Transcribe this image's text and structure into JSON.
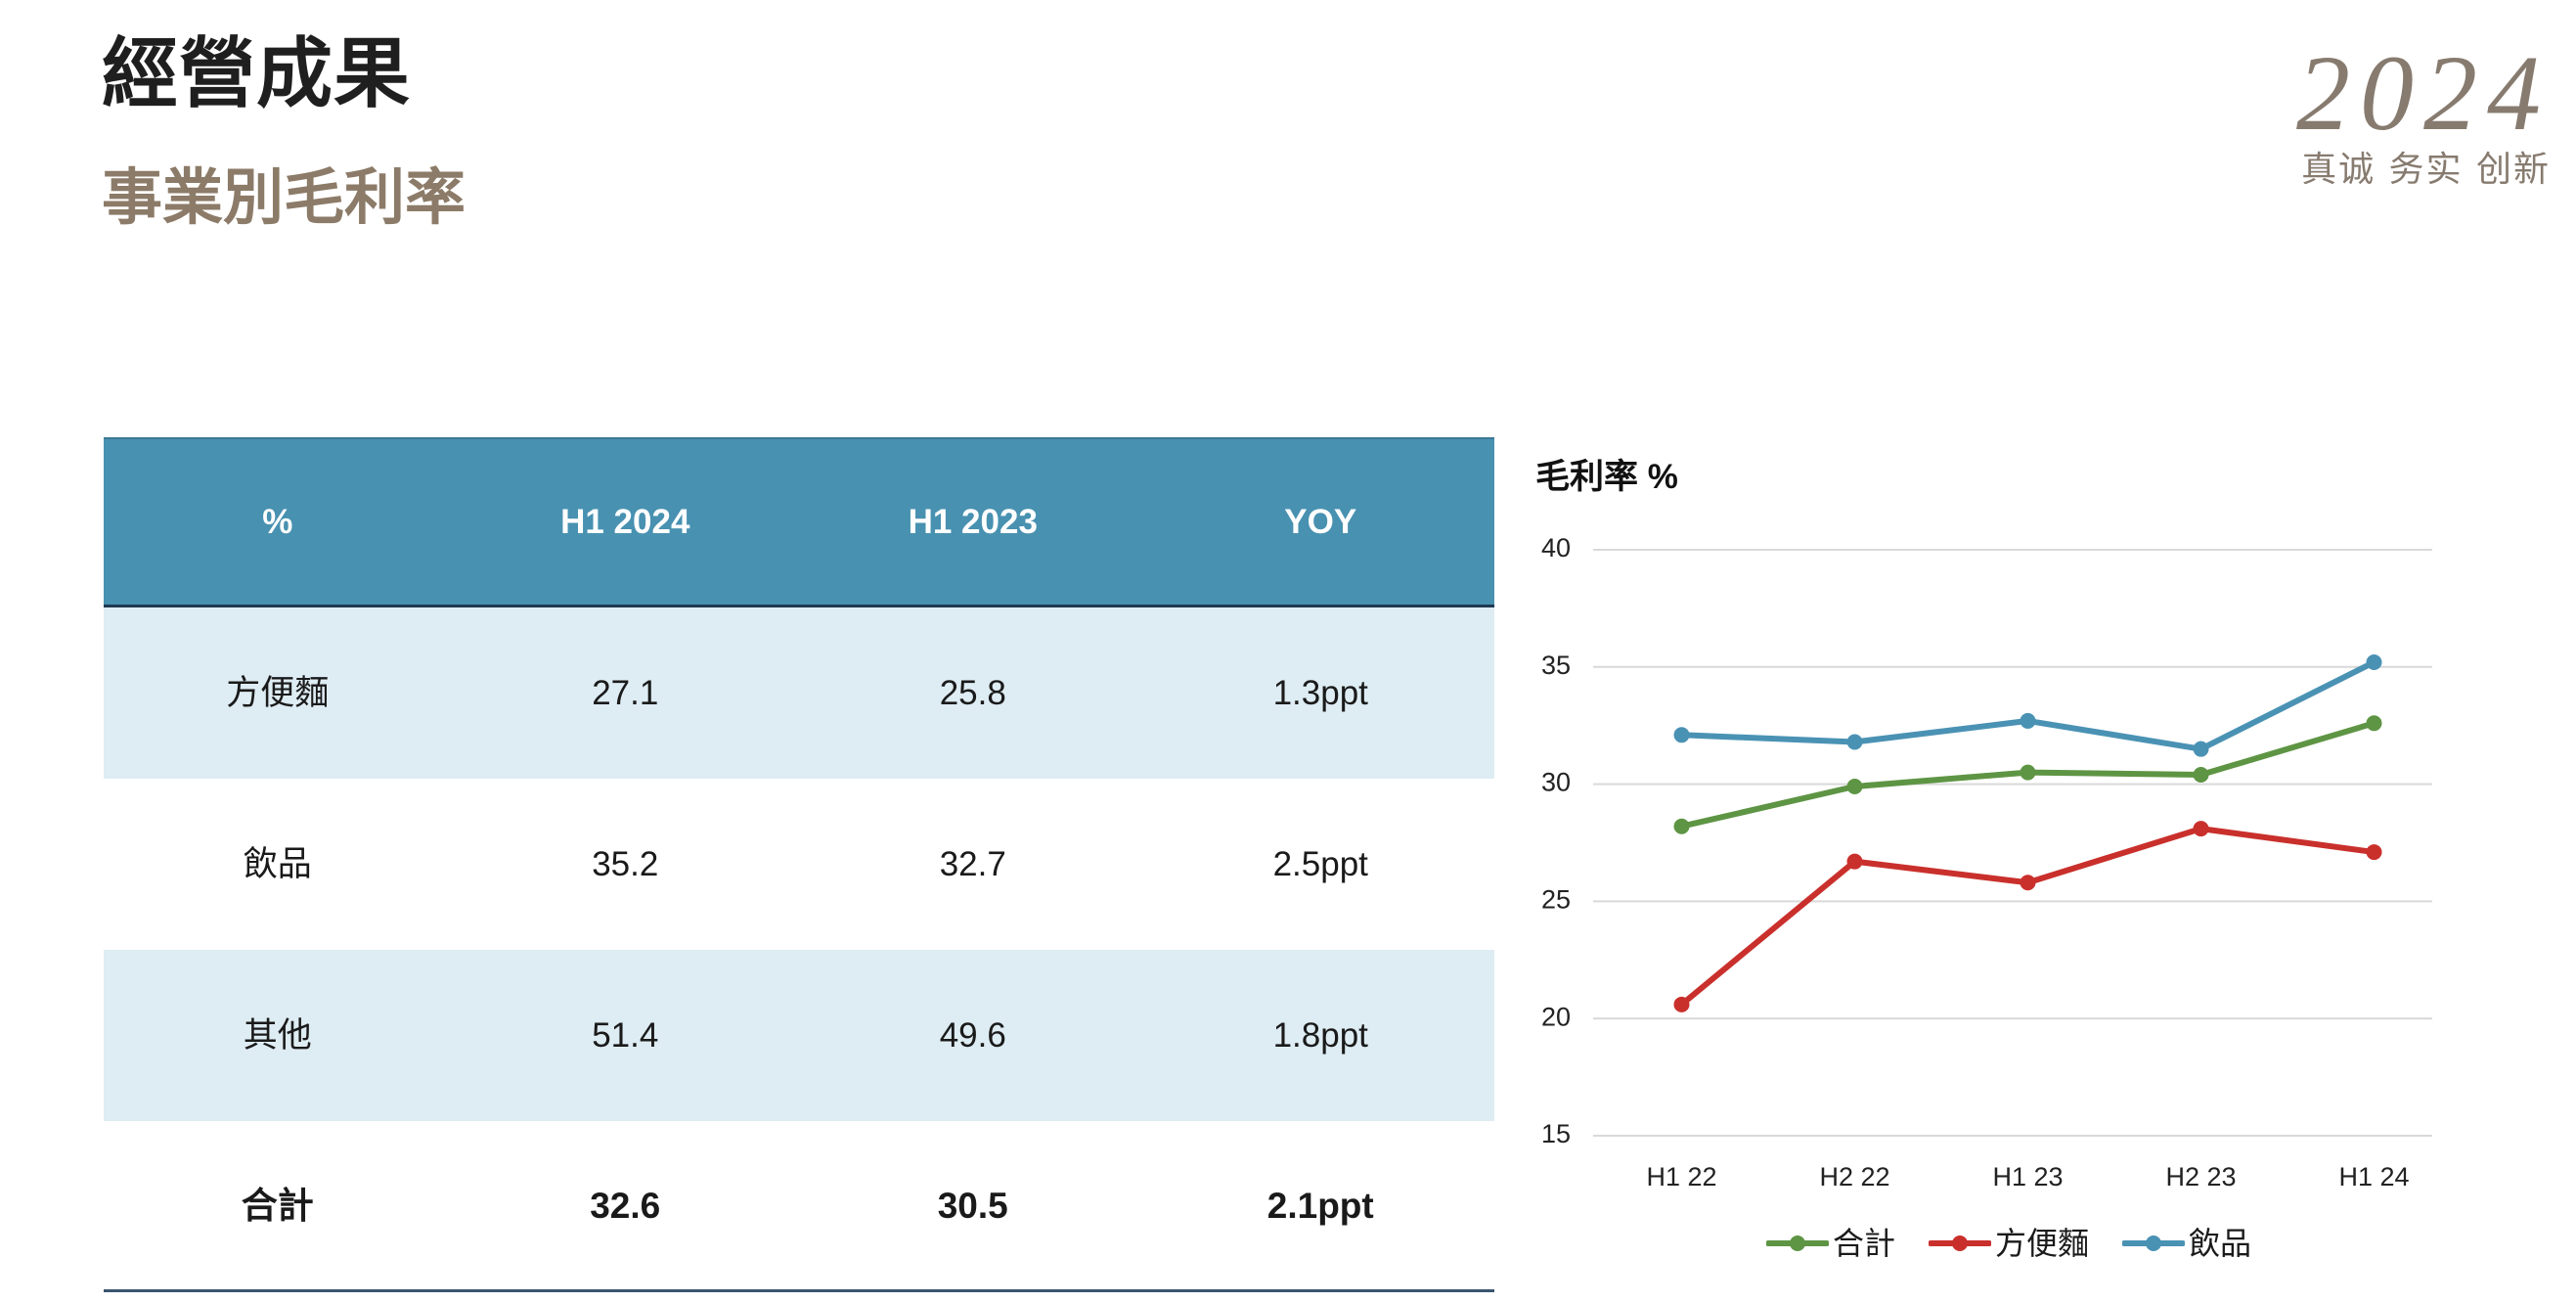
{
  "header": {
    "title": "經營成果",
    "subtitle": "事業別毛利率"
  },
  "logo": {
    "year": "2024",
    "slogan": "真诚 务实 创新"
  },
  "table": {
    "columns": [
      "%",
      "H1 2024",
      "H1 2023",
      "YOY"
    ],
    "rows": [
      [
        "方便麵",
        "27.1",
        "25.8",
        "1.3ppt"
      ],
      [
        "飲品",
        "35.2",
        "32.7",
        "2.5ppt"
      ],
      [
        "其他",
        "51.4",
        "49.6",
        "1.8ppt"
      ],
      [
        "合計",
        "32.6",
        "30.5",
        "2.1ppt"
      ]
    ]
  },
  "colors": {
    "header_bg": "#4891B1",
    "row_alt_bg": "#DEECF3",
    "subtitle": "#8C7B68",
    "logo": "#877B6F",
    "grid": "#D9D9D9"
  },
  "chart_data": {
    "type": "line",
    "title": "毛利率 %",
    "xlabel": "",
    "ylabel": "",
    "categories": [
      "H1 22",
      "H2 22",
      "H1 23",
      "H2 23",
      "H1 24"
    ],
    "series": [
      {
        "name": "合計",
        "color": "#5E9544",
        "values": [
          28.2,
          29.9,
          30.5,
          30.4,
          32.6
        ]
      },
      {
        "name": "方便麵",
        "color": "#C9302C",
        "values": [
          20.6,
          26.7,
          25.8,
          28.1,
          27.1
        ]
      },
      {
        "name": "飲品",
        "color": "#4A92B4",
        "values": [
          32.1,
          31.8,
          32.7,
          31.5,
          35.2
        ]
      }
    ],
    "ylim": [
      15,
      40
    ],
    "yticks": [
      15,
      20,
      25,
      30,
      35,
      40
    ],
    "grid": true,
    "legend": "bottom"
  }
}
